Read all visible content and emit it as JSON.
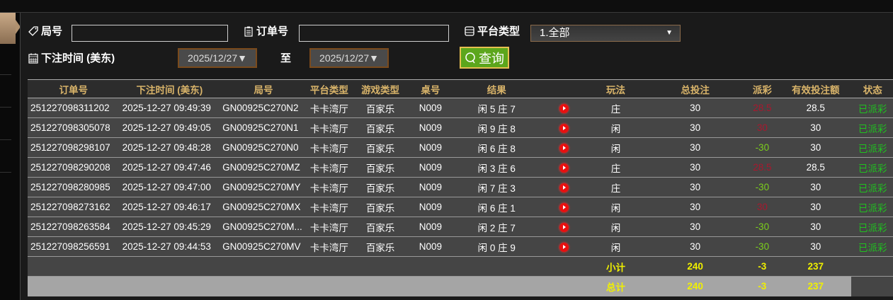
{
  "filters": {
    "round_label": "局号",
    "round_value": "",
    "order_label": "订单号",
    "order_value": "",
    "platform_label": "平台类型",
    "platform_value": "1.全部",
    "time_label": "下注时间 (美东)",
    "date_from": "2025/12/27▼",
    "to_label": "至",
    "date_to": "2025/12/27▼",
    "query_label": "查询"
  },
  "table": {
    "headers": [
      "订单号",
      "下注时间 (美东)",
      "局号",
      "平台类型",
      "游戏类型",
      "桌号",
      "结果",
      "",
      "玩法",
      "总投注",
      "派彩",
      "有效投注额",
      "状态"
    ],
    "rows": [
      {
        "order": "251227098311202",
        "time": "2025-12-27 09:49:39",
        "round": "GN00925C270N2",
        "platform": "卡卡湾厅",
        "game": "百家乐",
        "table": "N009",
        "result": "闲 5 庄 7",
        "play": "庄",
        "bet": "30",
        "payout": "28.5",
        "payout_color": "#a8182e",
        "valid": "28.5",
        "status": "已派彩"
      },
      {
        "order": "251227098305078",
        "time": "2025-12-27 09:49:05",
        "round": "GN00925C270N1",
        "platform": "卡卡湾厅",
        "game": "百家乐",
        "table": "N009",
        "result": "闲 9 庄 8",
        "play": "闲",
        "bet": "30",
        "payout": "30",
        "payout_color": "#a8182e",
        "valid": "30",
        "status": "已派彩"
      },
      {
        "order": "251227098298107",
        "time": "2025-12-27 09:48:28",
        "round": "GN00925C270N0",
        "platform": "卡卡湾厅",
        "game": "百家乐",
        "table": "N009",
        "result": "闲 6 庄 8",
        "play": "闲",
        "bet": "30",
        "payout": "-30",
        "payout_color": "#7ccf1c",
        "valid": "30",
        "status": "已派彩"
      },
      {
        "order": "251227098290208",
        "time": "2025-12-27 09:47:46",
        "round": "GN00925C270MZ",
        "platform": "卡卡湾厅",
        "game": "百家乐",
        "table": "N009",
        "result": "闲 3 庄 6",
        "play": "庄",
        "bet": "30",
        "payout": "28.5",
        "payout_color": "#a8182e",
        "valid": "28.5",
        "status": "已派彩"
      },
      {
        "order": "251227098280985",
        "time": "2025-12-27 09:47:00",
        "round": "GN00925C270MY",
        "platform": "卡卡湾厅",
        "game": "百家乐",
        "table": "N009",
        "result": "闲 7 庄 3",
        "play": "庄",
        "bet": "30",
        "payout": "-30",
        "payout_color": "#7ccf1c",
        "valid": "30",
        "status": "已派彩"
      },
      {
        "order": "251227098273162",
        "time": "2025-12-27 09:46:17",
        "round": "GN00925C270MX",
        "platform": "卡卡湾厅",
        "game": "百家乐",
        "table": "N009",
        "result": "闲 6 庄 1",
        "play": "闲",
        "bet": "30",
        "payout": "30",
        "payout_color": "#a8182e",
        "valid": "30",
        "status": "已派彩"
      },
      {
        "order": "251227098263584",
        "time": "2025-12-27 09:45:29",
        "round": "GN00925C270M...",
        "platform": "卡卡湾厅",
        "game": "百家乐",
        "table": "N009",
        "result": "闲 2 庄 7",
        "play": "闲",
        "bet": "30",
        "payout": "-30",
        "payout_color": "#7ccf1c",
        "valid": "30",
        "status": "已派彩"
      },
      {
        "order": "251227098256591",
        "time": "2025-12-27 09:44:53",
        "round": "GN00925C270MV",
        "platform": "卡卡湾厅",
        "game": "百家乐",
        "table": "N009",
        "result": "闲 0 庄 9",
        "play": "闲",
        "bet": "30",
        "payout": "-30",
        "payout_color": "#7ccf1c",
        "valid": "30",
        "status": "已派彩"
      }
    ],
    "subtotal": {
      "label": "小计",
      "bet": "240",
      "payout": "-3",
      "valid": "237"
    },
    "total": {
      "label": "总计",
      "bet": "240",
      "payout": "-3",
      "valid": "237"
    }
  },
  "colors": {
    "accent_green": "#5ca61c",
    "header_gold": "#d9b46a",
    "total_yellow": "#f0f000",
    "status_green": "#1fc21f"
  }
}
